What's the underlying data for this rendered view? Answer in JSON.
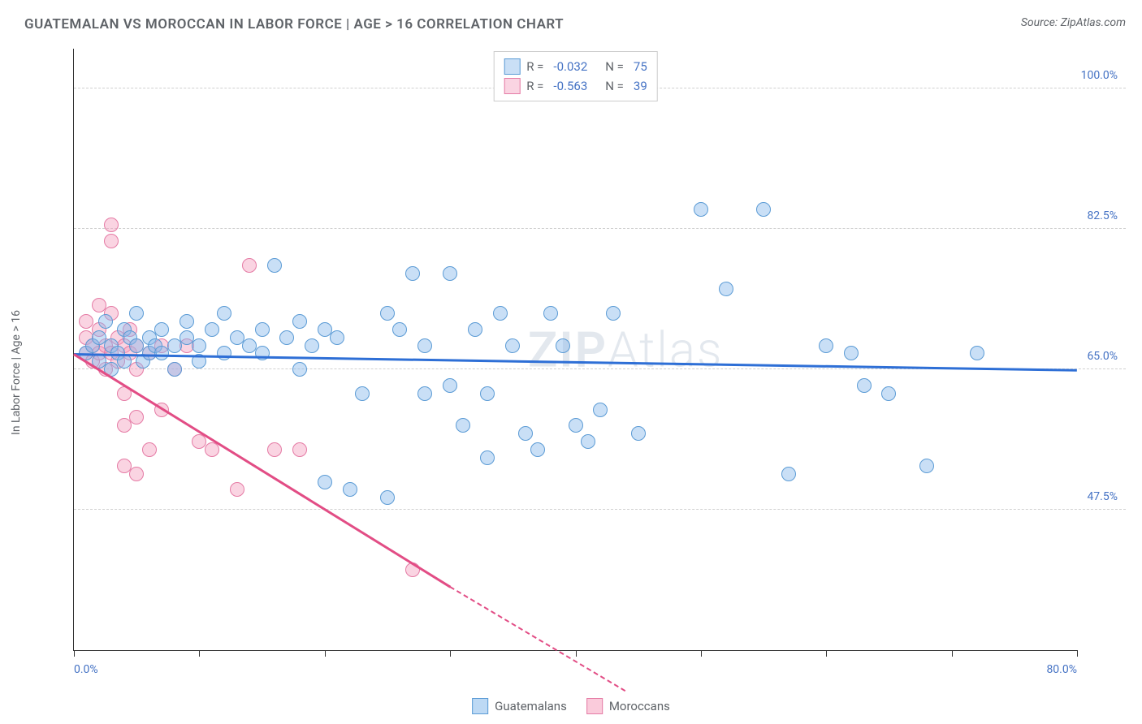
{
  "title": "GUATEMALAN VS MOROCCAN IN LABOR FORCE | AGE > 16 CORRELATION CHART",
  "source": "Source: ZipAtlas.com",
  "ylabel": "In Labor Force | Age > 16",
  "watermark_bold": "ZIP",
  "watermark_light": "Atlas",
  "chart": {
    "type": "scatter",
    "xlim": [
      0,
      80
    ],
    "ylim": [
      30,
      105
    ],
    "xticks": [
      0,
      10,
      20,
      30,
      40,
      50,
      60,
      70,
      80
    ],
    "xtick_labels": {
      "0": "0.0%",
      "80": "80.0%"
    },
    "yticks": [
      47.5,
      65.0,
      82.5,
      100.0
    ],
    "ytick_labels": [
      "47.5%",
      "65.0%",
      "82.5%",
      "100.0%"
    ],
    "grid_color": "#d8d8d8",
    "background": "#ffffff",
    "point_radius": 9,
    "point_stroke_width": 1,
    "series": [
      {
        "name": "Guatemalans",
        "fill": "rgba(135,185,235,0.45)",
        "stroke": "#5b9bd5",
        "R_label": "R =",
        "R": "-0.032",
        "N_label": "N =",
        "N": "75",
        "trend": {
          "x1": 0,
          "y1": 67,
          "x2": 80,
          "y2": 65,
          "color": "#2e6fd6",
          "width": 3
        },
        "points": [
          [
            1,
            67
          ],
          [
            1.5,
            68
          ],
          [
            2,
            66
          ],
          [
            2,
            69
          ],
          [
            2.5,
            71
          ],
          [
            3,
            68
          ],
          [
            3,
            65
          ],
          [
            3.5,
            67
          ],
          [
            4,
            66
          ],
          [
            4,
            70
          ],
          [
            4.5,
            69
          ],
          [
            5,
            68
          ],
          [
            5,
            72
          ],
          [
            5.5,
            66
          ],
          [
            6,
            67
          ],
          [
            6,
            69
          ],
          [
            6.5,
            68
          ],
          [
            7,
            70
          ],
          [
            7,
            67
          ],
          [
            8,
            68
          ],
          [
            8,
            65
          ],
          [
            9,
            69
          ],
          [
            9,
            71
          ],
          [
            10,
            68
          ],
          [
            10,
            66
          ],
          [
            11,
            70
          ],
          [
            12,
            67
          ],
          [
            12,
            72
          ],
          [
            13,
            69
          ],
          [
            14,
            68
          ],
          [
            15,
            70
          ],
          [
            15,
            67
          ],
          [
            16,
            78
          ],
          [
            17,
            69
          ],
          [
            18,
            71
          ],
          [
            18,
            65
          ],
          [
            19,
            68
          ],
          [
            20,
            51
          ],
          [
            20,
            70
          ],
          [
            21,
            69
          ],
          [
            22,
            50
          ],
          [
            23,
            62
          ],
          [
            25,
            49
          ],
          [
            25,
            72
          ],
          [
            26,
            70
          ],
          [
            27,
            77
          ],
          [
            28,
            62
          ],
          [
            28,
            68
          ],
          [
            30,
            77
          ],
          [
            30,
            63
          ],
          [
            31,
            58
          ],
          [
            32,
            70
          ],
          [
            33,
            62
          ],
          [
            33,
            54
          ],
          [
            34,
            72
          ],
          [
            35,
            68
          ],
          [
            36,
            57
          ],
          [
            37,
            55
          ],
          [
            38,
            72
          ],
          [
            39,
            68
          ],
          [
            40,
            58
          ],
          [
            41,
            56
          ],
          [
            42,
            60
          ],
          [
            43,
            72
          ],
          [
            45,
            57
          ],
          [
            50,
            85
          ],
          [
            52,
            75
          ],
          [
            55,
            85
          ],
          [
            57,
            52
          ],
          [
            60,
            68
          ],
          [
            62,
            67
          ],
          [
            63,
            63
          ],
          [
            65,
            62
          ],
          [
            68,
            53
          ],
          [
            72,
            67
          ]
        ]
      },
      {
        "name": "Moroccans",
        "fill": "rgba(245,160,190,0.45)",
        "stroke": "#e57ba5",
        "R_label": "R =",
        "R": "-0.563",
        "N_label": "N =",
        "N": "39",
        "trend": {
          "x1": 0,
          "y1": 67,
          "x2": 30,
          "y2": 38,
          "color": "#e24d85",
          "width": 2.5,
          "dash_from_x": 30,
          "dash_to_x": 44,
          "dash_to_y": 25
        },
        "points": [
          [
            1,
            67
          ],
          [
            1,
            69
          ],
          [
            1,
            71
          ],
          [
            1.5,
            68
          ],
          [
            1.5,
            66
          ],
          [
            2,
            70
          ],
          [
            2,
            73
          ],
          [
            2,
            67
          ],
          [
            2.5,
            68
          ],
          [
            2.5,
            65
          ],
          [
            3,
            72
          ],
          [
            3,
            67
          ],
          [
            3,
            81
          ],
          [
            3,
            83
          ],
          [
            3.5,
            69
          ],
          [
            3.5,
            66
          ],
          [
            4,
            68
          ],
          [
            4,
            62
          ],
          [
            4,
            58
          ],
          [
            4,
            53
          ],
          [
            4.5,
            67
          ],
          [
            4.5,
            70
          ],
          [
            5,
            68
          ],
          [
            5,
            65
          ],
          [
            5,
            59
          ],
          [
            5,
            52
          ],
          [
            6,
            67
          ],
          [
            6,
            55
          ],
          [
            7,
            68
          ],
          [
            7,
            60
          ],
          [
            8,
            65
          ],
          [
            9,
            68
          ],
          [
            10,
            56
          ],
          [
            11,
            55
          ],
          [
            13,
            50
          ],
          [
            14,
            78
          ],
          [
            16,
            55
          ],
          [
            18,
            55
          ],
          [
            27,
            40
          ]
        ]
      }
    ]
  },
  "legend_bottom": [
    {
      "label": "Guatemalans",
      "fill": "rgba(135,185,235,0.55)",
      "stroke": "#5b9bd5"
    },
    {
      "label": "Moroccans",
      "fill": "rgba(245,160,190,0.55)",
      "stroke": "#e57ba5"
    }
  ]
}
